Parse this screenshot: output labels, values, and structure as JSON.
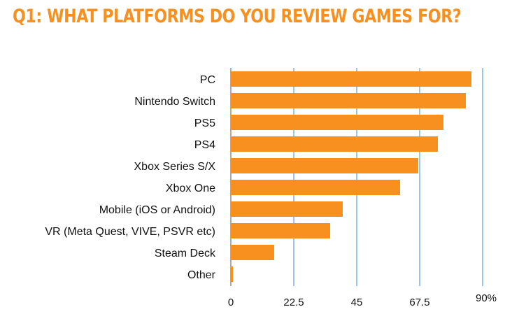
{
  "colors": {
    "bar": "#f7901e",
    "title": "#f7901e",
    "grid": "#3a8fc7",
    "axis": "#555555"
  },
  "chart_data": {
    "type": "bar",
    "orientation": "horizontal",
    "title": "Q1: WHAT PLATFORMS DO YOU REVIEW GAMES FOR?",
    "categories": [
      "PC",
      "Nintendo Switch",
      "PS5",
      "PS4",
      "Xbox Series S/X",
      "Xbox One",
      "Mobile (iOS or Android)",
      "VR (Meta Quest, VIVE, PSVR etc)",
      "Steam Deck",
      "Other"
    ],
    "values": [
      86,
      84,
      76,
      74,
      67,
      60.5,
      40,
      35.5,
      15.5,
      0.8
    ],
    "xlim": [
      0,
      90
    ],
    "x_ticks": [
      0,
      22.5,
      45,
      67.5,
      90
    ],
    "x_tick_labels": [
      "0",
      "22.5",
      "45",
      "67.5",
      "90%"
    ],
    "grid": true,
    "legend": "none"
  }
}
